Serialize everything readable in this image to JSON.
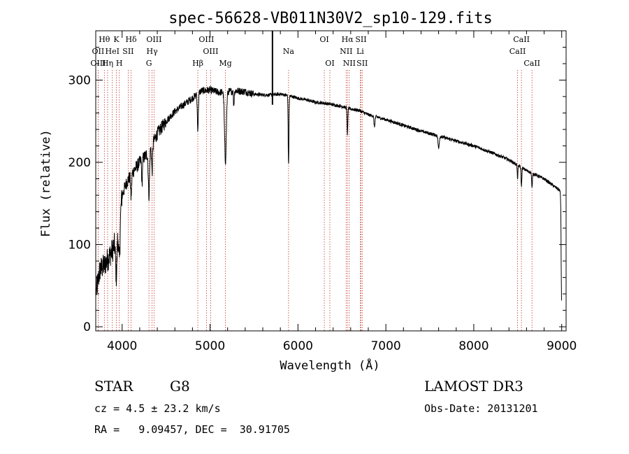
{
  "chart_data": {
    "type": "line",
    "title": "spec-56628-VB011N30V2_sp10-129.fits",
    "xlabel": "Wavelength (Å)",
    "ylabel": "Flux (relative)",
    "xlim": [
      3700,
      9050
    ],
    "ylim": [
      -5,
      360
    ],
    "xticks": [
      4000,
      5000,
      6000,
      7000,
      8000,
      9000
    ],
    "yticks": [
      0,
      100,
      200,
      300
    ],
    "marker_wavelength": 5710,
    "lines": [
      {
        "name": "Hθ",
        "wave": 3798,
        "row": 0
      },
      {
        "name": "OII",
        "wave": 3727,
        "row": 1
      },
      {
        "name": "OIII",
        "wave": 3727,
        "row": 2
      },
      {
        "name": "K",
        "wave": 3934,
        "row": 0
      },
      {
        "name": "HeI",
        "wave": 3889,
        "row": 1
      },
      {
        "name": "Hη",
        "wave": 3835,
        "row": 2
      },
      {
        "name": "SII",
        "wave": 4069,
        "row": 1
      },
      {
        "name": "H",
        "wave": 3968,
        "row": 2
      },
      {
        "name": "Hδ",
        "wave": 4102,
        "row": 0
      },
      {
        "name": "OIII",
        "wave": 4363,
        "row": 0
      },
      {
        "name": "Hγ",
        "wave": 4341,
        "row": 1
      },
      {
        "name": "G",
        "wave": 4305,
        "row": 2
      },
      {
        "name": "OIII",
        "wave": 4959,
        "row": 0
      },
      {
        "name": "OIII",
        "wave": 5007,
        "row": 1
      },
      {
        "name": "Hβ",
        "wave": 4861,
        "row": 2
      },
      {
        "name": "Mg",
        "wave": 5175,
        "row": 2
      },
      {
        "name": "Na",
        "wave": 5893,
        "row": 1
      },
      {
        "name": "OI",
        "wave": 6300,
        "row": 0
      },
      {
        "name": "OI",
        "wave": 6363,
        "row": 2
      },
      {
        "name": "Hα",
        "wave": 6563,
        "row": 0
      },
      {
        "name": "NII",
        "wave": 6548,
        "row": 1
      },
      {
        "name": "NII",
        "wave": 6584,
        "row": 2
      },
      {
        "name": "SII",
        "wave": 6717,
        "row": 0
      },
      {
        "name": "Li",
        "wave": 6708,
        "row": 1
      },
      {
        "name": "SII",
        "wave": 6731,
        "row": 2
      },
      {
        "name": "CaII",
        "wave": 8542,
        "row": 0
      },
      {
        "name": "CaII",
        "wave": 8498,
        "row": 1
      },
      {
        "name": "CaII",
        "wave": 8662,
        "row": 2
      }
    ],
    "continuum": [
      [
        3700,
        40
      ],
      [
        3750,
        70
      ],
      [
        3800,
        75
      ],
      [
        3850,
        85
      ],
      [
        3900,
        95
      ],
      [
        3950,
        120
      ],
      [
        4000,
        160
      ],
      [
        4050,
        175
      ],
      [
        4100,
        185
      ],
      [
        4200,
        200
      ],
      [
        4300,
        212
      ],
      [
        4400,
        235
      ],
      [
        4500,
        250
      ],
      [
        4600,
        262
      ],
      [
        4700,
        270
      ],
      [
        4800,
        278
      ],
      [
        4900,
        287
      ],
      [
        5000,
        288
      ],
      [
        5100,
        285
      ],
      [
        5200,
        286
      ],
      [
        5300,
        287
      ],
      [
        5400,
        286
      ],
      [
        5500,
        283
      ],
      [
        5600,
        282
      ],
      [
        5700,
        282
      ],
      [
        5800,
        283
      ],
      [
        5900,
        281
      ],
      [
        6000,
        278
      ],
      [
        6100,
        276
      ],
      [
        6200,
        273
      ],
      [
        6300,
        272
      ],
      [
        6400,
        270
      ],
      [
        6500,
        268
      ],
      [
        6600,
        265
      ],
      [
        6700,
        263
      ],
      [
        6800,
        258
      ],
      [
        7000,
        252
      ],
      [
        7200,
        245
      ],
      [
        7400,
        238
      ],
      [
        7600,
        232
      ],
      [
        7800,
        226
      ],
      [
        8000,
        220
      ],
      [
        8200,
        212
      ],
      [
        8400,
        203
      ],
      [
        8600,
        190
      ],
      [
        8800,
        180
      ],
      [
        8950,
        168
      ],
      [
        9000,
        165
      ]
    ],
    "absorption_features": [
      {
        "wave": 3934,
        "depth": 0.45,
        "width": 12
      },
      {
        "wave": 3968,
        "depth": 0.4,
        "width": 12
      },
      {
        "wave": 4102,
        "depth": 0.15,
        "width": 8
      },
      {
        "wave": 4226,
        "depth": 0.15,
        "width": 6
      },
      {
        "wave": 4305,
        "depth": 0.25,
        "width": 10
      },
      {
        "wave": 4341,
        "depth": 0.15,
        "width": 8
      },
      {
        "wave": 4861,
        "depth": 0.15,
        "width": 8
      },
      {
        "wave": 5175,
        "depth": 0.3,
        "width": 14
      },
      {
        "wave": 5270,
        "depth": 0.06,
        "width": 6
      },
      {
        "wave": 5893,
        "depth": 0.3,
        "width": 6
      },
      {
        "wave": 6563,
        "depth": 0.12,
        "width": 6
      },
      {
        "wave": 6870,
        "depth": 0.05,
        "width": 8
      },
      {
        "wave": 7600,
        "depth": 0.06,
        "width": 10
      },
      {
        "wave": 8498,
        "depth": 0.08,
        "width": 6
      },
      {
        "wave": 8542,
        "depth": 0.12,
        "width": 6
      },
      {
        "wave": 8662,
        "depth": 0.1,
        "width": 6
      },
      {
        "wave": 9000,
        "depth": 0.4,
        "width": 10
      }
    ]
  },
  "info": {
    "obj_class": "STAR",
    "subclass": "G8",
    "survey": "LAMOST DR3",
    "cz": "cz = 4.5 ± 23.2 km/s",
    "obs_date": "Obs-Date: 20131201",
    "coords": "RA =   9.09457, DEC =  30.91705"
  }
}
